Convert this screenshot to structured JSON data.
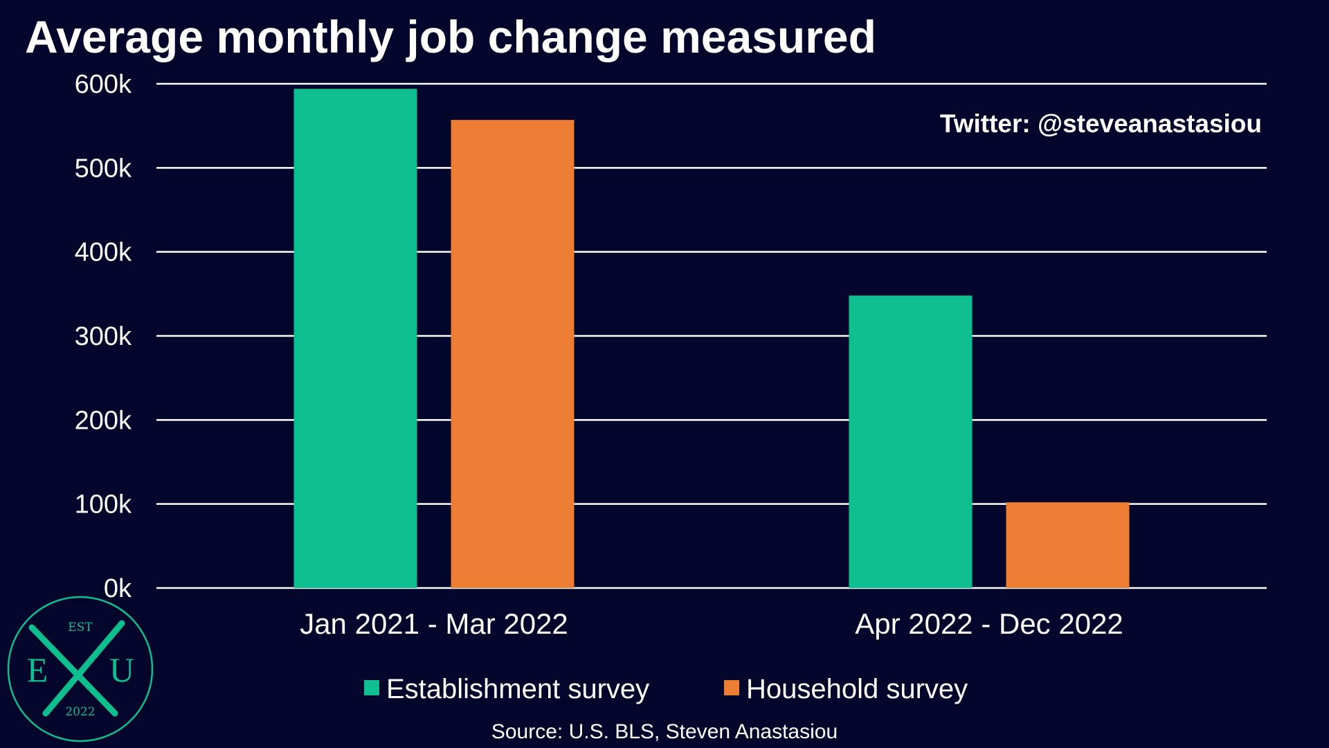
{
  "chart_data": {
    "type": "bar",
    "title": "Average monthly job change measured",
    "watermark": "Twitter: @steveanastasiou",
    "source": "Source: U.S. BLS, Steven Anastasiou",
    "categories": [
      "Jan 2021 - Mar 2022",
      "Apr 2022 - Dec 2022"
    ],
    "series": [
      {
        "name": "Establishment survey",
        "values": [
          594000,
          348000
        ],
        "color": "#0dbf8f"
      },
      {
        "name": "Household survey",
        "values": [
          557000,
          102000
        ],
        "color": "#ed7d33"
      }
    ],
    "ylim": [
      0,
      600000
    ],
    "yticks": [
      0,
      100000,
      200000,
      300000,
      400000,
      500000,
      600000
    ],
    "ytick_labels": [
      "0k",
      "100k",
      "200k",
      "300k",
      "400k",
      "500k",
      "600k"
    ],
    "grid": true,
    "legend_position": "bottom"
  },
  "logo": {
    "top_text": "EST",
    "left_letter": "E",
    "right_letter": "U",
    "bottom_text": "2022",
    "color": "#0dbf8f"
  },
  "colors": {
    "background": "#03052a",
    "text": "#ffffff",
    "grid": "#ffffff"
  }
}
